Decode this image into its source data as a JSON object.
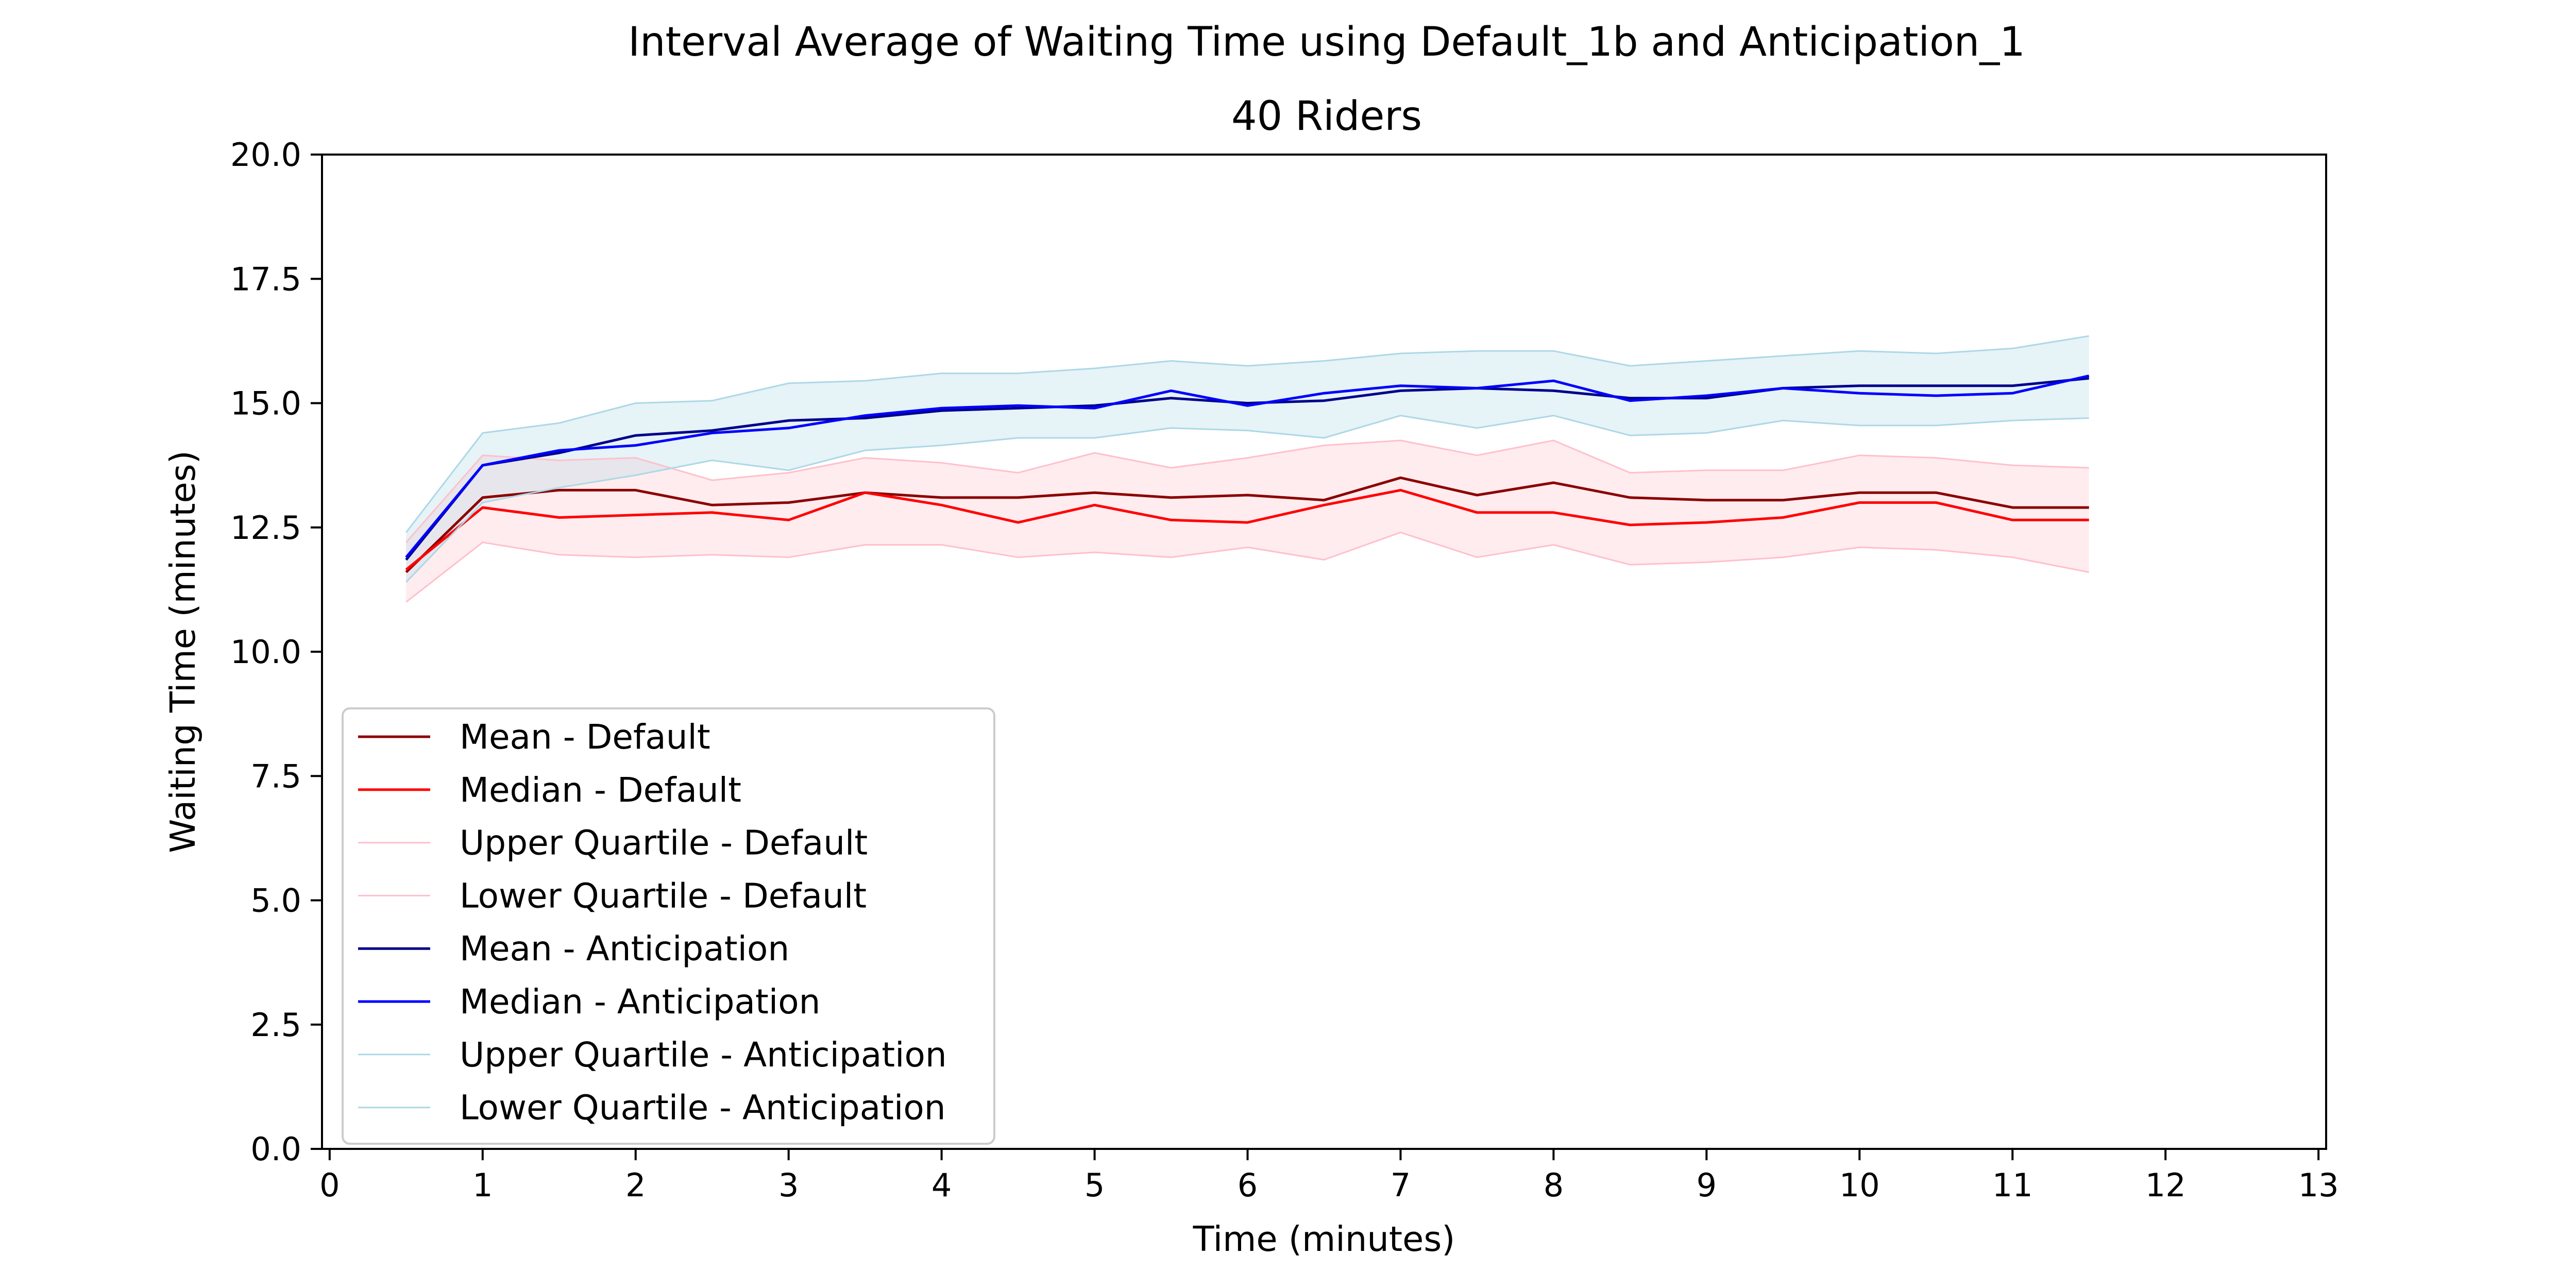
{
  "chart_data": {
    "type": "line",
    "title": "Interval Average of Waiting Time using Default_1b and Anticipation_1",
    "subtitle": "40 Riders",
    "xlabel": "Time (minutes)",
    "ylabel": "Waiting Time (minutes)",
    "xlim": [
      -0.05,
      13.05
    ],
    "ylim": [
      0,
      20
    ],
    "x_ticks": [
      "0",
      "1",
      "2",
      "3",
      "4",
      "5",
      "6",
      "7",
      "8",
      "9",
      "10",
      "11",
      "12",
      "13"
    ],
    "y_ticks": [
      "0.0",
      "2.5",
      "5.0",
      "7.5",
      "10.0",
      "12.5",
      "15.0",
      "17.5",
      "20.0"
    ],
    "grid": false,
    "legend_position": "lower-left",
    "x": [
      0.5,
      1,
      1.5,
      2,
      2.5,
      3,
      3.5,
      4,
      4.5,
      5,
      5.5,
      6,
      6.5,
      7,
      7.5,
      8,
      8.5,
      9,
      9.5,
      10,
      10.5,
      11,
      11.5
    ],
    "series": [
      {
        "name": "Mean - Default",
        "color": "#8b0000",
        "values": [
          11.6,
          13.1,
          13.25,
          13.25,
          12.95,
          13.0,
          13.2,
          13.1,
          13.1,
          13.2,
          13.1,
          13.15,
          13.05,
          13.5,
          13.15,
          13.4,
          13.1,
          13.05,
          13.05,
          13.2,
          13.2,
          12.9,
          12.9
        ]
      },
      {
        "name": "Median - Default",
        "color": "#ff0000",
        "values": [
          11.65,
          12.9,
          12.7,
          12.75,
          12.8,
          12.65,
          13.2,
          12.95,
          12.6,
          12.95,
          12.65,
          12.6,
          12.95,
          13.25,
          12.8,
          12.8,
          12.55,
          12.6,
          12.7,
          13.0,
          13.0,
          12.65,
          12.65
        ]
      },
      {
        "name": "Upper Quartile - Default",
        "color": "#ffc0cb",
        "values": [
          12.2,
          13.95,
          13.85,
          13.9,
          13.45,
          13.6,
          13.9,
          13.8,
          13.6,
          14.0,
          13.7,
          13.9,
          14.15,
          14.25,
          13.95,
          14.25,
          13.6,
          13.65,
          13.65,
          13.95,
          13.9,
          13.75,
          13.7
        ]
      },
      {
        "name": "Lower Quartile - Default",
        "color": "#ffc0cb",
        "values": [
          11.0,
          12.2,
          11.95,
          11.9,
          11.95,
          11.9,
          12.15,
          12.15,
          11.9,
          12.0,
          11.9,
          12.1,
          11.85,
          12.4,
          11.9,
          12.15,
          11.75,
          11.8,
          11.9,
          12.1,
          12.05,
          11.9,
          11.6
        ]
      },
      {
        "name": "Mean - Anticipation",
        "color": "#00008b",
        "values": [
          11.85,
          13.75,
          14.0,
          14.35,
          14.45,
          14.65,
          14.7,
          14.85,
          14.9,
          14.95,
          15.1,
          15.0,
          15.05,
          15.25,
          15.3,
          15.25,
          15.1,
          15.1,
          15.3,
          15.35,
          15.35,
          15.35,
          15.5
        ]
      },
      {
        "name": "Median - Anticipation",
        "color": "#0000ff",
        "values": [
          11.9,
          13.75,
          14.05,
          14.15,
          14.4,
          14.5,
          14.75,
          14.9,
          14.95,
          14.9,
          15.25,
          14.95,
          15.2,
          15.35,
          15.3,
          15.45,
          15.05,
          15.15,
          15.3,
          15.2,
          15.15,
          15.2,
          15.55
        ]
      },
      {
        "name": "Upper Quartile - Anticipation",
        "color": "#add8e6",
        "values": [
          12.4,
          14.4,
          14.6,
          15.0,
          15.05,
          15.4,
          15.45,
          15.6,
          15.6,
          15.7,
          15.85,
          15.75,
          15.85,
          16.0,
          16.05,
          16.05,
          15.75,
          15.85,
          15.95,
          16.05,
          16.0,
          16.1,
          16.35
        ]
      },
      {
        "name": "Lower Quartile - Anticipation",
        "color": "#add8e6",
        "values": [
          11.4,
          13.0,
          13.3,
          13.55,
          13.85,
          13.65,
          14.05,
          14.15,
          14.3,
          14.3,
          14.5,
          14.45,
          14.3,
          14.75,
          14.5,
          14.75,
          14.35,
          14.4,
          14.65,
          14.55,
          14.55,
          14.65,
          14.7
        ]
      }
    ],
    "fills": [
      {
        "between": [
          "Upper Quartile - Default",
          "Lower Quartile - Default"
        ],
        "color": "#ffc0cb",
        "opacity": 0.3
      },
      {
        "between": [
          "Upper Quartile - Anticipation",
          "Lower Quartile - Anticipation"
        ],
        "color": "#add8e6",
        "opacity": 0.3
      }
    ]
  }
}
